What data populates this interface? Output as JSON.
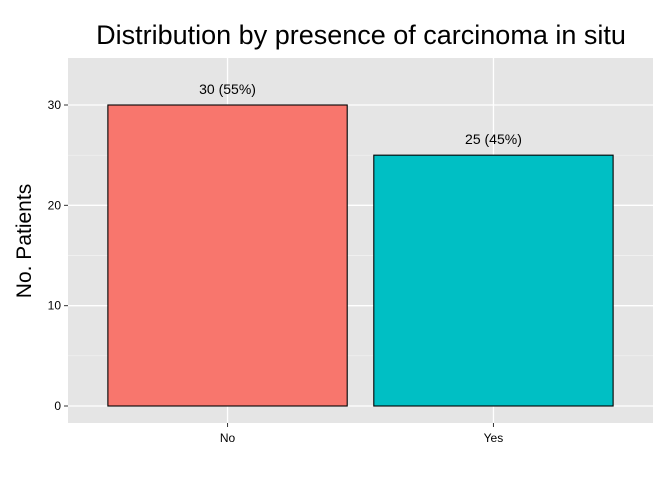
{
  "chart_data": {
    "type": "bar",
    "title": "Distribution by presence of carcinoma in situ",
    "xlabel": "",
    "ylabel": "No. Patients",
    "categories": [
      "No",
      "Yes"
    ],
    "values": [
      30,
      25
    ],
    "data_labels": [
      "30 (55%)",
      "25 (45%)"
    ],
    "bar_colors": [
      "#F8766D",
      "#00BFC4"
    ],
    "ylim": [
      0,
      34
    ],
    "yticks": [
      0,
      10,
      20,
      30
    ],
    "ytick_labels": [
      "0",
      "10",
      "20",
      "30"
    ],
    "grid": true,
    "legend": "none",
    "panel_background": "#E5E5E5",
    "grid_color": "#FFFFFF"
  }
}
